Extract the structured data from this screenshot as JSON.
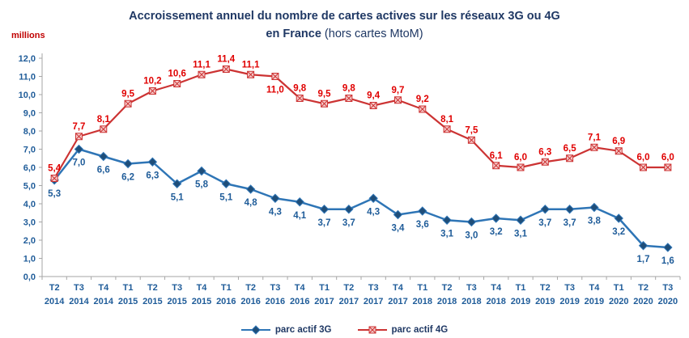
{
  "header": {
    "title_line1": "Accroissement annuel du nombre de cartes actives sur les réseaux 3G ou 4G",
    "title_line2_bold": "en France",
    "title_line2_rest": " (hors cartes MtoM)"
  },
  "chart_data": {
    "type": "line",
    "title": "Accroissement annuel du nombre de cartes actives sur les réseaux 3G ou 4G en France (hors cartes MtoM)",
    "unit": "millions",
    "ylim": [
      0,
      12
    ],
    "ytick_step": 1,
    "grid": false,
    "legend_position": "bottom",
    "decimal_separator": ",",
    "axis_color": "#A6A6A6",
    "tick_label_color": "#1F5C99",
    "categories": [
      {
        "q": "T2",
        "year": "2014"
      },
      {
        "q": "T3",
        "year": "2014"
      },
      {
        "q": "T4",
        "year": "2014"
      },
      {
        "q": "T1",
        "year": "2015"
      },
      {
        "q": "T2",
        "year": "2015"
      },
      {
        "q": "T3",
        "year": "2015"
      },
      {
        "q": "T4",
        "year": "2015"
      },
      {
        "q": "T1",
        "year": "2016"
      },
      {
        "q": "T2",
        "year": "2016"
      },
      {
        "q": "T3",
        "year": "2016"
      },
      {
        "q": "T4",
        "year": "2016"
      },
      {
        "q": "T1",
        "year": "2017"
      },
      {
        "q": "T2",
        "year": "2017"
      },
      {
        "q": "T3",
        "year": "2017"
      },
      {
        "q": "T4",
        "year": "2017"
      },
      {
        "q": "T1",
        "year": "2018"
      },
      {
        "q": "T2",
        "year": "2018"
      },
      {
        "q": "T3",
        "year": "2018"
      },
      {
        "q": "T4",
        "year": "2018"
      },
      {
        "q": "T1",
        "year": "2019"
      },
      {
        "q": "T2",
        "year": "2019"
      },
      {
        "q": "T3",
        "year": "2019"
      },
      {
        "q": "T4",
        "year": "2019"
      },
      {
        "q": "T1",
        "year": "2020"
      },
      {
        "q": "T2",
        "year": "2020"
      },
      {
        "q": "T3",
        "year": "2020"
      }
    ],
    "series": [
      {
        "name": "parc actif 3G",
        "color": "#2E75B6",
        "label_color": "#1F5C99",
        "marker": "diamond",
        "marker_fill": "#1F4E79",
        "stroke_width": 2.5,
        "label_position": "below",
        "label_below_indices": [],
        "values": [
          5.3,
          7.0,
          6.6,
          6.2,
          6.3,
          5.1,
          5.8,
          5.1,
          4.8,
          4.3,
          4.1,
          3.7,
          3.7,
          4.3,
          3.4,
          3.6,
          3.1,
          3.0,
          3.2,
          3.1,
          3.7,
          3.7,
          3.8,
          3.2,
          1.7,
          1.6
        ]
      },
      {
        "name": "parc actif 4G",
        "color": "#CC3333",
        "label_color": "#E00000",
        "marker": "x-square",
        "marker_fill": "#F6CBCB",
        "stroke_width": 2.2,
        "label_position": "above",
        "label_below_indices": [
          9
        ],
        "values": [
          5.4,
          7.7,
          8.1,
          9.5,
          10.2,
          10.6,
          11.1,
          11.4,
          11.1,
          11.0,
          9.8,
          9.5,
          9.8,
          9.4,
          9.7,
          9.2,
          8.1,
          7.5,
          6.1,
          6.0,
          6.3,
          6.5,
          7.1,
          6.9,
          6.0,
          6.0
        ]
      }
    ]
  }
}
